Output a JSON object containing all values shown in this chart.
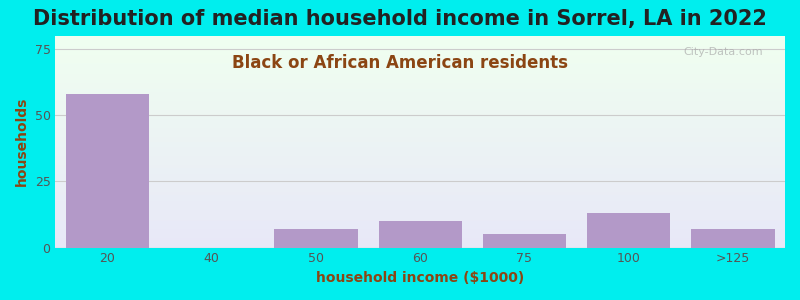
{
  "title": "Distribution of median household income in Sorrel, LA in 2022",
  "subtitle": "Black or African American residents",
  "xlabel": "household income ($1000)",
  "ylabel": "households",
  "bar_labels": [
    "20",
    "40",
    "50",
    "60",
    "75",
    "100",
    ">125"
  ],
  "bar_values": [
    58,
    0,
    7,
    10,
    5,
    13,
    7
  ],
  "bar_color": "#b399c8",
  "bar_width": 0.8,
  "ylim": [
    0,
    80
  ],
  "yticks": [
    0,
    25,
    50,
    75
  ],
  "background_outer": "#00eeee",
  "background_plot_top": "#f0fff0",
  "background_plot_bottom": "#e8e8f8",
  "grid_color": "#cccccc",
  "title_fontsize": 15,
  "subtitle_fontsize": 12,
  "axis_label_fontsize": 10,
  "tick_fontsize": 9,
  "title_color": "#222222",
  "subtitle_color": "#8b4513",
  "axis_label_color": "#8b4513",
  "watermark_text": "City-Data.com",
  "watermark_color": "#aaaaaa"
}
